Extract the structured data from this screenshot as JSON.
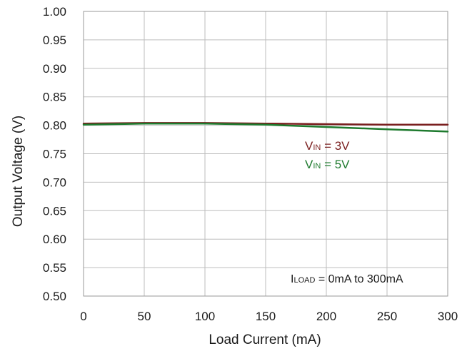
{
  "chart_data": {
    "type": "line",
    "title": "",
    "xlabel": "Load Current (mA)",
    "ylabel": "Output Voltage (V)",
    "xlim": [
      0,
      300
    ],
    "ylim": [
      0.5,
      1.0
    ],
    "xticks": [
      0,
      50,
      100,
      150,
      200,
      250,
      300
    ],
    "xtick_labels": [
      "0",
      "50",
      "100",
      "150",
      "200",
      "250",
      "300"
    ],
    "yticks": [
      0.5,
      0.55,
      0.6,
      0.65,
      0.7,
      0.75,
      0.8,
      0.85,
      0.9,
      0.95,
      1.0
    ],
    "ytick_labels": [
      "0.50",
      "0.55",
      "0.60",
      "0.65",
      "0.70",
      "0.75",
      "0.80",
      "0.85",
      "0.90",
      "0.95",
      "1.00"
    ],
    "grid": true,
    "series": [
      {
        "name_main": "V",
        "name_sub": "IN",
        "name_rest": " = 3V",
        "color": "#7a1f1f",
        "x": [
          0,
          50,
          100,
          150,
          200,
          250,
          300
        ],
        "y": [
          0.803,
          0.804,
          0.804,
          0.803,
          0.802,
          0.801,
          0.801
        ]
      },
      {
        "name_main": "V",
        "name_sub": "IN",
        "name_rest": " = 5V",
        "color": "#1e7a2e",
        "x": [
          0,
          50,
          100,
          150,
          200,
          250,
          300
        ],
        "y": [
          0.801,
          0.803,
          0.803,
          0.801,
          0.797,
          0.793,
          0.789
        ]
      }
    ],
    "annotation": {
      "main": "I",
      "sub": "LOAD",
      "rest": " = 0mA to 300mA"
    }
  }
}
